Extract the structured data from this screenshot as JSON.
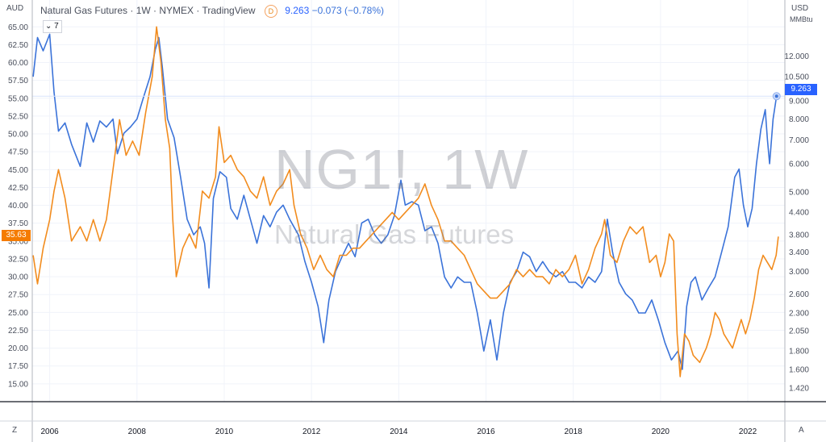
{
  "header": {
    "title": "Natural Gas Futures · 1W · NYMEX · TradingView",
    "badge": "D",
    "last": "9.263",
    "change": "−0.073 (−0.78%)"
  },
  "units": {
    "left": "AUD",
    "right": "USD",
    "right_sub": "MMBtu"
  },
  "interval_dropdown": "7",
  "watermark": {
    "symbol": "NG1!, 1W",
    "name": "Natural Gas Futures"
  },
  "price_labels": {
    "left": "35.63",
    "right": "9.263"
  },
  "corners": {
    "left": "Z",
    "right": "A"
  },
  "colors": {
    "blue_series": "#3b73d9",
    "orange_series": "#f28c1e",
    "left_label": "#f57c00",
    "right_label": "#2962ff"
  },
  "chart_data": {
    "type": "line",
    "x_ticks": [
      "2006",
      "2008",
      "2010",
      "2012",
      "2014",
      "2016",
      "2018",
      "2020",
      "2022"
    ],
    "x_range": [
      2005.6,
      2022.85
    ],
    "left_axis": {
      "unit": "AUD",
      "scale": "linear",
      "ylim": [
        12.5,
        66.5
      ],
      "ticks": [
        "65.00",
        "62.50",
        "60.00",
        "57.50",
        "55.00",
        "52.50",
        "50.00",
        "47.50",
        "45.00",
        "42.50",
        "40.00",
        "37.50",
        "35.00",
        "32.50",
        "30.00",
        "27.50",
        "25.00",
        "22.50",
        "20.00",
        "17.50",
        "15.00"
      ]
    },
    "right_axis": {
      "unit": "USD MMBtu",
      "scale": "log",
      "ylim": [
        1.3,
        15.5
      ],
      "ticks": [
        "12.000",
        "10.500",
        "9.000",
        "8.000",
        "7.000",
        "6.000",
        "5.000",
        "4.400",
        "3.800",
        "3.400",
        "3.000",
        "2.600",
        "2.300",
        "2.050",
        "1.800",
        "1.600",
        "1.420"
      ]
    },
    "series": [
      {
        "axis": "right",
        "color": "#3b73d9",
        "points": [
          [
            2005.62,
            10.5
          ],
          [
            2005.72,
            13.5
          ],
          [
            2005.85,
            12.4
          ],
          [
            2006.0,
            13.8
          ],
          [
            2006.1,
            9.5
          ],
          [
            2006.2,
            7.4
          ],
          [
            2006.35,
            7.8
          ],
          [
            2006.5,
            6.8
          ],
          [
            2006.7,
            5.9
          ],
          [
            2006.85,
            7.8
          ],
          [
            2007.0,
            6.9
          ],
          [
            2007.15,
            7.9
          ],
          [
            2007.3,
            7.6
          ],
          [
            2007.45,
            8.0
          ],
          [
            2007.55,
            6.4
          ],
          [
            2007.7,
            7.3
          ],
          [
            2007.85,
            7.6
          ],
          [
            2008.0,
            8.0
          ],
          [
            2008.15,
            9.2
          ],
          [
            2008.3,
            10.5
          ],
          [
            2008.42,
            12.5
          ],
          [
            2008.5,
            13.5
          ],
          [
            2008.58,
            11.2
          ],
          [
            2008.7,
            8.0
          ],
          [
            2008.85,
            7.1
          ],
          [
            2009.0,
            5.5
          ],
          [
            2009.15,
            4.2
          ],
          [
            2009.3,
            3.8
          ],
          [
            2009.45,
            4.0
          ],
          [
            2009.55,
            3.6
          ],
          [
            2009.65,
            2.7
          ],
          [
            2009.75,
            4.8
          ],
          [
            2009.9,
            5.7
          ],
          [
            2010.05,
            5.5
          ],
          [
            2010.15,
            4.5
          ],
          [
            2010.3,
            4.2
          ],
          [
            2010.45,
            4.9
          ],
          [
            2010.6,
            4.2
          ],
          [
            2010.75,
            3.6
          ],
          [
            2010.9,
            4.3
          ],
          [
            2011.05,
            4.0
          ],
          [
            2011.2,
            4.4
          ],
          [
            2011.35,
            4.6
          ],
          [
            2011.5,
            4.2
          ],
          [
            2011.7,
            3.8
          ],
          [
            2011.85,
            3.2
          ],
          [
            2012.0,
            2.8
          ],
          [
            2012.15,
            2.4
          ],
          [
            2012.28,
            1.9
          ],
          [
            2012.4,
            2.5
          ],
          [
            2012.55,
            3.0
          ],
          [
            2012.7,
            3.3
          ],
          [
            2012.85,
            3.6
          ],
          [
            2013.0,
            3.3
          ],
          [
            2013.15,
            4.1
          ],
          [
            2013.3,
            4.2
          ],
          [
            2013.45,
            3.8
          ],
          [
            2013.6,
            3.6
          ],
          [
            2013.75,
            3.8
          ],
          [
            2013.9,
            4.3
          ],
          [
            2014.05,
            5.4
          ],
          [
            2014.15,
            4.6
          ],
          [
            2014.3,
            4.7
          ],
          [
            2014.45,
            4.6
          ],
          [
            2014.6,
            3.9
          ],
          [
            2014.75,
            4.0
          ],
          [
            2014.9,
            3.6
          ],
          [
            2015.05,
            2.9
          ],
          [
            2015.2,
            2.7
          ],
          [
            2015.35,
            2.9
          ],
          [
            2015.5,
            2.8
          ],
          [
            2015.65,
            2.8
          ],
          [
            2015.8,
            2.3
          ],
          [
            2015.95,
            1.8
          ],
          [
            2016.1,
            2.2
          ],
          [
            2016.25,
            1.7
          ],
          [
            2016.4,
            2.3
          ],
          [
            2016.55,
            2.8
          ],
          [
            2016.7,
            3.0
          ],
          [
            2016.85,
            3.4
          ],
          [
            2017.0,
            3.3
          ],
          [
            2017.15,
            3.0
          ],
          [
            2017.3,
            3.2
          ],
          [
            2017.45,
            3.0
          ],
          [
            2017.6,
            2.9
          ],
          [
            2017.75,
            3.0
          ],
          [
            2017.9,
            2.8
          ],
          [
            2018.05,
            2.8
          ],
          [
            2018.2,
            2.7
          ],
          [
            2018.35,
            2.9
          ],
          [
            2018.5,
            2.8
          ],
          [
            2018.65,
            3.0
          ],
          [
            2018.78,
            4.2
          ],
          [
            2018.9,
            3.4
          ],
          [
            2019.05,
            2.8
          ],
          [
            2019.2,
            2.6
          ],
          [
            2019.35,
            2.5
          ],
          [
            2019.5,
            2.3
          ],
          [
            2019.65,
            2.3
          ],
          [
            2019.8,
            2.5
          ],
          [
            2019.95,
            2.2
          ],
          [
            2020.1,
            1.9
          ],
          [
            2020.25,
            1.7
          ],
          [
            2020.4,
            1.8
          ],
          [
            2020.5,
            1.6
          ],
          [
            2020.6,
            2.4
          ],
          [
            2020.7,
            2.8
          ],
          [
            2020.8,
            2.9
          ],
          [
            2020.95,
            2.5
          ],
          [
            2021.1,
            2.7
          ],
          [
            2021.25,
            2.9
          ],
          [
            2021.4,
            3.4
          ],
          [
            2021.55,
            4.0
          ],
          [
            2021.7,
            5.5
          ],
          [
            2021.8,
            5.8
          ],
          [
            2021.9,
            4.6
          ],
          [
            2022.0,
            4.0
          ],
          [
            2022.1,
            4.5
          ],
          [
            2022.2,
            6.0
          ],
          [
            2022.3,
            7.5
          ],
          [
            2022.4,
            8.5
          ],
          [
            2022.45,
            7.0
          ],
          [
            2022.5,
            6.0
          ],
          [
            2022.58,
            8.0
          ],
          [
            2022.66,
            9.263
          ]
        ]
      },
      {
        "axis": "left",
        "color": "#f28c1e",
        "points": [
          [
            2005.62,
            33.0
          ],
          [
            2005.72,
            29.0
          ],
          [
            2005.85,
            34.0
          ],
          [
            2006.0,
            38.0
          ],
          [
            2006.1,
            42.0
          ],
          [
            2006.2,
            45.0
          ],
          [
            2006.35,
            41.0
          ],
          [
            2006.5,
            35.0
          ],
          [
            2006.7,
            37.0
          ],
          [
            2006.85,
            35.0
          ],
          [
            2007.0,
            38.0
          ],
          [
            2007.15,
            35.0
          ],
          [
            2007.3,
            38.0
          ],
          [
            2007.45,
            45.0
          ],
          [
            2007.6,
            52.0
          ],
          [
            2007.75,
            47.0
          ],
          [
            2007.9,
            49.0
          ],
          [
            2008.05,
            47.0
          ],
          [
            2008.2,
            53.0
          ],
          [
            2008.35,
            58.0
          ],
          [
            2008.45,
            65.0
          ],
          [
            2008.55,
            60.0
          ],
          [
            2008.65,
            52.0
          ],
          [
            2008.75,
            48.0
          ],
          [
            2008.82,
            38.0
          ],
          [
            2008.9,
            30.0
          ],
          [
            2009.05,
            34.0
          ],
          [
            2009.2,
            36.0
          ],
          [
            2009.35,
            34.0
          ],
          [
            2009.5,
            42.0
          ],
          [
            2009.65,
            41.0
          ],
          [
            2009.8,
            44.0
          ],
          [
            2009.88,
            51.0
          ],
          [
            2010.0,
            46.0
          ],
          [
            2010.15,
            47.0
          ],
          [
            2010.3,
            45.0
          ],
          [
            2010.45,
            44.0
          ],
          [
            2010.6,
            42.0
          ],
          [
            2010.75,
            41.0
          ],
          [
            2010.9,
            44.0
          ],
          [
            2011.05,
            40.0
          ],
          [
            2011.2,
            42.0
          ],
          [
            2011.35,
            43.0
          ],
          [
            2011.5,
            45.0
          ],
          [
            2011.6,
            40.0
          ],
          [
            2011.75,
            36.0
          ],
          [
            2011.9,
            34.0
          ],
          [
            2012.05,
            31.0
          ],
          [
            2012.2,
            33.0
          ],
          [
            2012.35,
            31.0
          ],
          [
            2012.5,
            30.0
          ],
          [
            2012.65,
            33.0
          ],
          [
            2012.8,
            33.0
          ],
          [
            2012.95,
            34.0
          ],
          [
            2013.1,
            34.0
          ],
          [
            2013.25,
            35.0
          ],
          [
            2013.4,
            36.0
          ],
          [
            2013.55,
            37.0
          ],
          [
            2013.7,
            38.0
          ],
          [
            2013.85,
            39.0
          ],
          [
            2014.0,
            38.0
          ],
          [
            2014.15,
            39.0
          ],
          [
            2014.3,
            40.0
          ],
          [
            2014.45,
            41.0
          ],
          [
            2014.6,
            43.0
          ],
          [
            2014.75,
            40.0
          ],
          [
            2014.9,
            38.0
          ],
          [
            2015.05,
            35.0
          ],
          [
            2015.2,
            35.0
          ],
          [
            2015.35,
            34.0
          ],
          [
            2015.5,
            33.0
          ],
          [
            2015.65,
            31.0
          ],
          [
            2015.8,
            29.0
          ],
          [
            2015.95,
            28.0
          ],
          [
            2016.1,
            27.0
          ],
          [
            2016.25,
            27.0
          ],
          [
            2016.4,
            28.0
          ],
          [
            2016.55,
            29.0
          ],
          [
            2016.7,
            31.0
          ],
          [
            2016.85,
            30.0
          ],
          [
            2017.0,
            31.0
          ],
          [
            2017.15,
            30.0
          ],
          [
            2017.3,
            30.0
          ],
          [
            2017.45,
            29.0
          ],
          [
            2017.6,
            31.0
          ],
          [
            2017.75,
            30.0
          ],
          [
            2017.9,
            31.0
          ],
          [
            2018.05,
            33.0
          ],
          [
            2018.2,
            29.0
          ],
          [
            2018.35,
            31.0
          ],
          [
            2018.5,
            34.0
          ],
          [
            2018.65,
            36.0
          ],
          [
            2018.72,
            38.0
          ],
          [
            2018.85,
            33.0
          ],
          [
            2019.0,
            32.0
          ],
          [
            2019.15,
            35.0
          ],
          [
            2019.3,
            37.0
          ],
          [
            2019.45,
            36.0
          ],
          [
            2019.6,
            37.0
          ],
          [
            2019.75,
            32.0
          ],
          [
            2019.9,
            33.0
          ],
          [
            2020.0,
            30.0
          ],
          [
            2020.1,
            32.0
          ],
          [
            2020.2,
            36.0
          ],
          [
            2020.3,
            35.0
          ],
          [
            2020.38,
            22.0
          ],
          [
            2020.45,
            16.0
          ],
          [
            2020.55,
            22.0
          ],
          [
            2020.65,
            21.0
          ],
          [
            2020.75,
            19.0
          ],
          [
            2020.9,
            18.0
          ],
          [
            2021.05,
            20.0
          ],
          [
            2021.15,
            22.0
          ],
          [
            2021.25,
            25.0
          ],
          [
            2021.35,
            24.0
          ],
          [
            2021.45,
            22.0
          ],
          [
            2021.55,
            21.0
          ],
          [
            2021.65,
            20.0
          ],
          [
            2021.75,
            22.0
          ],
          [
            2021.85,
            24.0
          ],
          [
            2021.95,
            22.0
          ],
          [
            2022.05,
            24.0
          ],
          [
            2022.15,
            27.0
          ],
          [
            2022.25,
            31.0
          ],
          [
            2022.35,
            33.0
          ],
          [
            2022.45,
            32.0
          ],
          [
            2022.55,
            31.0
          ],
          [
            2022.65,
            33.0
          ],
          [
            2022.7,
            35.63
          ]
        ]
      }
    ]
  }
}
